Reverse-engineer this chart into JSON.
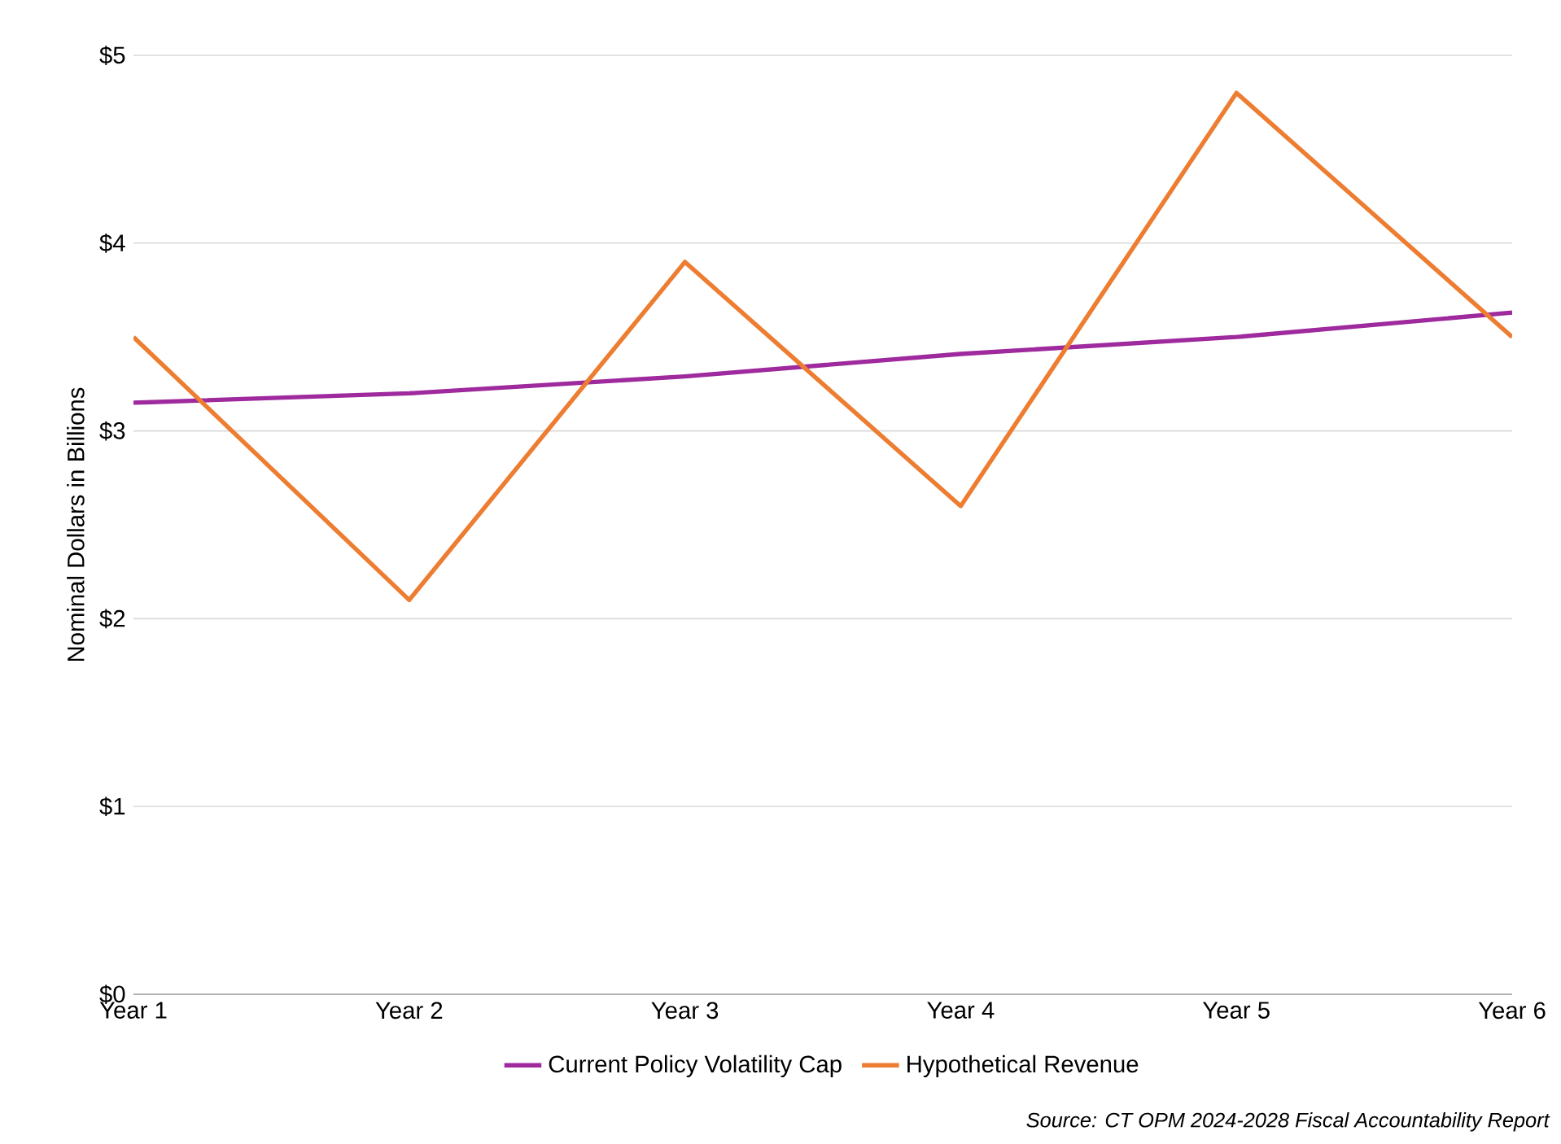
{
  "chart_data": {
    "type": "line",
    "ylabel": "Nominal Dollars in Billions",
    "categories": [
      "Year 1",
      "Year 2",
      "Year 3",
      "Year 4",
      "Year 5",
      "Year 6"
    ],
    "series": [
      {
        "name": "Current Policy Volatility Cap",
        "color": "#9e2a9e",
        "values": [
          3.15,
          3.2,
          3.29,
          3.41,
          3.5,
          3.63
        ]
      },
      {
        "name": "Hypothetical Revenue",
        "color": "#ed7d31",
        "values": [
          3.5,
          2.1,
          3.9,
          2.6,
          4.8,
          3.5
        ]
      }
    ],
    "ylim": [
      0,
      5
    ],
    "yticks": [
      {
        "value": 0,
        "label": "$0"
      },
      {
        "value": 1,
        "label": "$1"
      },
      {
        "value": 2,
        "label": "$2"
      },
      {
        "value": 3,
        "label": "$3"
      },
      {
        "value": 4,
        "label": "$4"
      },
      {
        "value": 5,
        "label": "$5"
      }
    ],
    "grid": "y",
    "legend": "bottom",
    "marker": "none",
    "line_style": "solid",
    "annotations": [
      "*Source: CT OPM 2024-2028 Fiscal Accountability Report*"
    ]
  }
}
